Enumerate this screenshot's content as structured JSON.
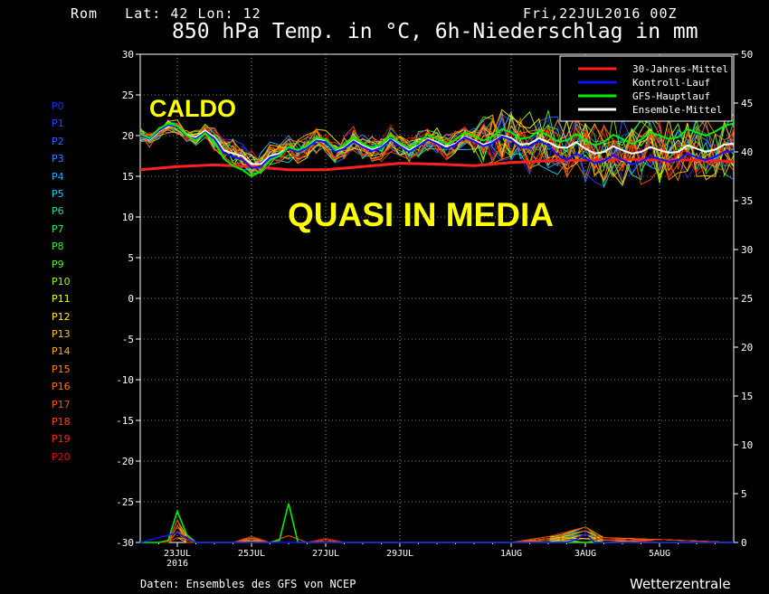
{
  "header": {
    "location": "Rom   Lat: 42 Lon: 12",
    "run": "Fri,22JUL2016 00Z",
    "title": "850 hPa Temp. in °C, 6h-Niederschlag in mm"
  },
  "overlays": {
    "hot": "CALDO",
    "near_average": "QUASI IN MEDIA"
  },
  "footer": {
    "source": "Daten: Ensembles des GFS von NCEP",
    "credit": "Wetterzentrale"
  },
  "members": [
    {
      "label": "P0",
      "color": "#1e2bff"
    },
    {
      "label": "P1",
      "color": "#2244ff"
    },
    {
      "label": "P2",
      "color": "#2a66ff"
    },
    {
      "label": "P3",
      "color": "#2b88ff"
    },
    {
      "label": "P4",
      "color": "#22aaff"
    },
    {
      "label": "P5",
      "color": "#22ccff"
    },
    {
      "label": "P6",
      "color": "#22ddaa"
    },
    {
      "label": "P7",
      "color": "#22ee66"
    },
    {
      "label": "P8",
      "color": "#33ee33"
    },
    {
      "label": "P9",
      "color": "#66ee22"
    },
    {
      "label": "P10",
      "color": "#99ff00"
    },
    {
      "label": "P11",
      "color": "#ffff00"
    },
    {
      "label": "P12",
      "color": "#ffee00"
    },
    {
      "label": "P13",
      "color": "#ffcc00"
    },
    {
      "label": "P14",
      "color": "#ffaa00"
    },
    {
      "label": "P15",
      "color": "#ff8800"
    },
    {
      "label": "P16",
      "color": "#ff7700"
    },
    {
      "label": "P17",
      "color": "#ff5500"
    },
    {
      "label": "P18",
      "color": "#ff4400"
    },
    {
      "label": "P19",
      "color": "#ff2200"
    },
    {
      "label": "P20",
      "color": "#ee0000"
    }
  ],
  "chart_data": {
    "type": "line",
    "title": "850 hPa Temp. in °C, 6h-Niederschlag in mm",
    "y_left": {
      "min": -30,
      "max": 30,
      "ticks": [
        30,
        25,
        20,
        15,
        10,
        5,
        0,
        -5,
        -10,
        -15,
        -20,
        -25,
        -30
      ]
    },
    "y_right": {
      "min": 0,
      "max": 50,
      "ticks": [
        50,
        45,
        40,
        35,
        30,
        25,
        20,
        15,
        10,
        5,
        0
      ]
    },
    "x_hours": {
      "min": 0,
      "max": 384
    },
    "x_ticks": [
      {
        "hour": 24,
        "label": "23JUL",
        "sub": "2016"
      },
      {
        "hour": 72,
        "label": "25JUL",
        "sub": ""
      },
      {
        "hour": 120,
        "label": "27JUL",
        "sub": ""
      },
      {
        "hour": 168,
        "label": "29JUL",
        "sub": ""
      },
      {
        "hour": 240,
        "label": "1AUG",
        "sub": ""
      },
      {
        "hour": 288,
        "label": "3AUG",
        "sub": ""
      },
      {
        "hour": 336,
        "label": "5AUG",
        "sub": ""
      }
    ],
    "grid": true,
    "legend_position": "top-right",
    "legend": [
      {
        "name": "30-Jahres-Mittel",
        "color": "#ff2020"
      },
      {
        "name": "Kontroll-Lauf",
        "color": "#1010ff"
      },
      {
        "name": "GFS-Hauptlauf",
        "color": "#00ee00"
      },
      {
        "name": "Ensemble-Mittel",
        "color": "#ffffff"
      }
    ],
    "temperature_series": [
      {
        "name": "30-Jahres-Mittel",
        "color": "#ff2020",
        "width": 3,
        "hours": [
          0,
          24,
          48,
          72,
          96,
          120,
          144,
          168,
          192,
          216,
          240,
          264,
          288,
          312,
          336,
          360,
          384
        ],
        "values": [
          15.8,
          16.2,
          16.4,
          16.2,
          15.8,
          15.8,
          16.2,
          16.6,
          16.5,
          16.3,
          16.7,
          16.9,
          17.0,
          17.1,
          17.0,
          17.0,
          16.8
        ]
      },
      {
        "name": "Ensemble-Mittel",
        "color": "#ffffff",
        "width": 2,
        "hours": [
          0,
          6,
          12,
          18,
          24,
          30,
          36,
          42,
          48,
          54,
          60,
          66,
          72,
          78,
          84,
          90,
          96,
          102,
          108,
          114,
          120,
          126,
          132,
          138,
          144,
          150,
          156,
          162,
          168,
          174,
          180,
          186,
          192,
          198,
          204,
          210,
          216,
          222,
          228,
          234,
          240,
          246,
          252,
          258,
          264,
          270,
          276,
          282,
          288,
          294,
          300,
          306,
          312,
          318,
          324,
          330,
          336,
          342,
          348,
          354,
          360,
          366,
          372,
          378,
          384
        ],
        "values": [
          20,
          19.5,
          20.5,
          21.2,
          21.2,
          20,
          19.8,
          20.6,
          19.8,
          18.2,
          17.8,
          17.5,
          16.5,
          16.5,
          17.5,
          17.8,
          18.5,
          18.2,
          18.6,
          19.5,
          19.3,
          18.2,
          18.5,
          19.4,
          18.8,
          18.3,
          18.6,
          19.6,
          18.8,
          18.2,
          18.8,
          19.6,
          19.2,
          18.6,
          19.0,
          19.9,
          19.4,
          18.9,
          19.2,
          20.0,
          19.7,
          18.9,
          19.0,
          19.7,
          19.2,
          18.6,
          18.5,
          19.2,
          18.4,
          17.8,
          18.0,
          18.7,
          18.2,
          17.8,
          18.0,
          18.6,
          18.2,
          17.9,
          18.0,
          18.8,
          18.4,
          18.0,
          18.3,
          18.9,
          19.0
        ]
      },
      {
        "name": "Kontroll-Lauf",
        "color": "#1010ff",
        "width": 2,
        "hours": [
          0,
          6,
          12,
          18,
          24,
          30,
          36,
          42,
          48,
          54,
          60,
          66,
          72,
          78,
          84,
          90,
          96,
          102,
          108,
          114,
          120,
          126,
          132,
          138,
          144,
          150,
          156,
          162,
          168,
          174,
          180,
          186,
          192,
          198,
          204,
          210,
          216,
          222,
          228,
          234,
          240,
          246,
          252,
          258,
          264,
          270,
          276,
          282,
          288,
          294,
          300,
          306,
          312,
          318,
          324,
          330,
          336,
          342,
          348,
          354,
          360,
          366,
          372,
          378,
          384
        ],
        "values": [
          20,
          19.6,
          20.6,
          21.3,
          21.1,
          19.9,
          19.6,
          20.4,
          19.6,
          17.9,
          17.4,
          17.1,
          16.0,
          16.2,
          17.3,
          17.6,
          18.4,
          18.0,
          18.5,
          19.4,
          19.2,
          18.0,
          18.4,
          19.3,
          18.6,
          18.1,
          18.5,
          19.5,
          18.7,
          18.0,
          18.7,
          19.5,
          19.0,
          18.4,
          18.9,
          19.8,
          19.3,
          18.7,
          19.1,
          19.9,
          19.5,
          18.5,
          18.6,
          19.4,
          18.8,
          17.6,
          17.0,
          17.8,
          17.2,
          16.6,
          16.9,
          17.6,
          17.0,
          16.5,
          16.8,
          17.5,
          17.1,
          16.8,
          17.0,
          17.8,
          17.3,
          17.0,
          17.4,
          18.0,
          18.1
        ]
      },
      {
        "name": "GFS-Hauptlauf",
        "color": "#00ee00",
        "width": 2,
        "hours": [
          0,
          6,
          12,
          18,
          24,
          30,
          36,
          42,
          48,
          54,
          60,
          66,
          72,
          78,
          84,
          90,
          96,
          102,
          108,
          114,
          120,
          126,
          132,
          138,
          144,
          150,
          156,
          162,
          168,
          174,
          180,
          186,
          192,
          198,
          204,
          210,
          216,
          222,
          228,
          234,
          240,
          246,
          252,
          258,
          264,
          270,
          276,
          282,
          288,
          294,
          300,
          306,
          312,
          318,
          324,
          330,
          336,
          342,
          348,
          354,
          360,
          366,
          372,
          378,
          384
        ],
        "values": [
          20.2,
          19.7,
          20.8,
          21.5,
          21.2,
          20.0,
          19.4,
          20.3,
          19.2,
          17.2,
          16.3,
          15.8,
          15.0,
          15.6,
          17.0,
          17.5,
          18.6,
          18.2,
          18.8,
          19.8,
          19.5,
          18.3,
          18.8,
          19.8,
          19.0,
          18.5,
          19.0,
          20.0,
          19.1,
          18.5,
          19.2,
          20.1,
          19.6,
          19.0,
          19.5,
          20.4,
          19.9,
          19.4,
          19.9,
          20.8,
          20.4,
          19.6,
          19.8,
          20.6,
          20.0,
          19.3,
          19.4,
          20.2,
          19.4,
          18.8,
          19.2,
          20.1,
          19.6,
          19.0,
          19.5,
          20.4,
          20.0,
          19.6,
          19.8,
          20.8,
          20.4,
          20.0,
          20.5,
          21.2,
          21.5
        ]
      }
    ],
    "precipitation_series": [
      {
        "name": "GFS-Hauptlauf",
        "color": "#00ee00",
        "unit": "mm",
        "hours": [
          0,
          6,
          12,
          18,
          24,
          30,
          36,
          42,
          48,
          54,
          60,
          66,
          72,
          78,
          84,
          90,
          96,
          102,
          108,
          114,
          120,
          240,
          252,
          264,
          276,
          288,
          300,
          312,
          324,
          336,
          348,
          360,
          372,
          384
        ],
        "values": [
          0,
          0,
          0,
          0.2,
          3.2,
          0.8,
          0,
          0,
          0,
          0,
          0,
          0,
          0,
          0,
          0,
          0.2,
          4.0,
          0,
          0,
          0,
          0,
          0,
          0,
          0,
          0,
          0,
          0,
          0,
          0,
          0,
          0,
          0,
          0,
          0
        ]
      },
      {
        "name": "Kontroll-Lauf",
        "color": "#1010ff",
        "unit": "mm",
        "hours": [
          0,
          24,
          30,
          36,
          240,
          276,
          282,
          288,
          294,
          384
        ],
        "values": [
          0,
          1.0,
          0.4,
          0,
          0,
          0,
          0.3,
          0.9,
          0,
          0
        ]
      }
    ]
  }
}
